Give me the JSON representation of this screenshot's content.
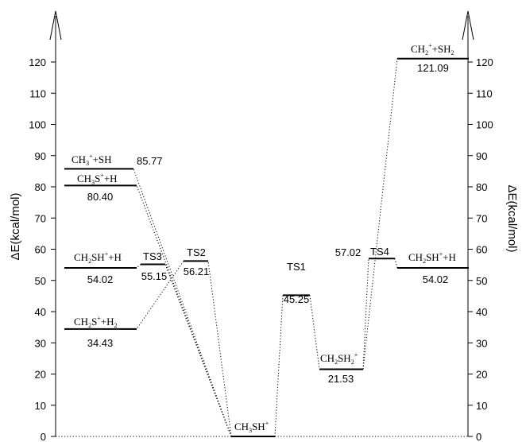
{
  "chart_data": {
    "type": "energy-level-diagram",
    "ylabel_left": "ΔE(kcal/mol)",
    "ylabel_right": "ΔE(kcal/mol)",
    "ylim": [
      0,
      120
    ],
    "yticks": [
      0,
      10,
      20,
      30,
      40,
      50,
      60,
      70,
      80,
      90,
      100,
      110,
      120
    ],
    "grid": false,
    "levels": [
      {
        "id": "ch3sh-plus",
        "label": "CH3SH+",
        "value_label": "",
        "energy": 0
      },
      {
        "id": "ts1",
        "label": "TS1",
        "value_label": "45.25",
        "energy": 45.25
      },
      {
        "id": "ch2sh2-plus",
        "label": "CH2SH2+",
        "value_label": "21.53",
        "energy": 21.53
      },
      {
        "id": "ts4",
        "label": "TS4",
        "value_label": "57.02",
        "energy": 57.02
      },
      {
        "id": "ch2sh-plus-h-right",
        "label": "CH2SH+ +H",
        "value_label": "54.02",
        "energy": 54.02
      },
      {
        "id": "ch2-plus-sh2",
        "label": "CH2+ +SH2",
        "value_label": "121.09",
        "energy": 121.09
      },
      {
        "id": "ts2",
        "label": "TS2",
        "value_label": "56.21",
        "energy": 56.21
      },
      {
        "id": "ts3",
        "label": "TS3",
        "value_label": "55.15",
        "energy": 55.15
      },
      {
        "id": "ch2sh-plus-h-left",
        "label": "CH2SH+ +H",
        "value_label": "54.02",
        "energy": 54.02
      },
      {
        "id": "ch2s-plus-h2",
        "label": "CH2S+ +H2",
        "value_label": "34.43",
        "energy": 34.43
      },
      {
        "id": "ch3s-plus-h",
        "label": "CH3S+ +H",
        "value_label": "80.40",
        "energy": 80.4
      },
      {
        "id": "ch3-plus-sh",
        "label": "CH3+ +SH",
        "value_label": "85.77",
        "energy": 85.77
      }
    ],
    "connections": [
      [
        "ch3sh-plus",
        "ts1"
      ],
      [
        "ts1",
        "ch2sh2-plus"
      ],
      [
        "ch2sh2-plus",
        "ts4"
      ],
      [
        "ts4",
        "ch2sh-plus-h-right"
      ],
      [
        "ch2sh2-plus",
        "ch2-plus-sh2"
      ],
      [
        "ch3sh-plus",
        "ts2"
      ],
      [
        "ts2",
        "ch2s-plus-h2"
      ],
      [
        "ch3sh-plus",
        "ts3"
      ],
      [
        "ts3",
        "ch2sh-plus-h-left"
      ],
      [
        "ch3sh-plus",
        "ch3s-plus-h"
      ],
      [
        "ch3sh-plus",
        "ch3-plus-sh"
      ],
      [
        "ch3sh-plus",
        "baseline-left"
      ],
      [
        "ch3sh-plus",
        "baseline-right"
      ]
    ]
  }
}
